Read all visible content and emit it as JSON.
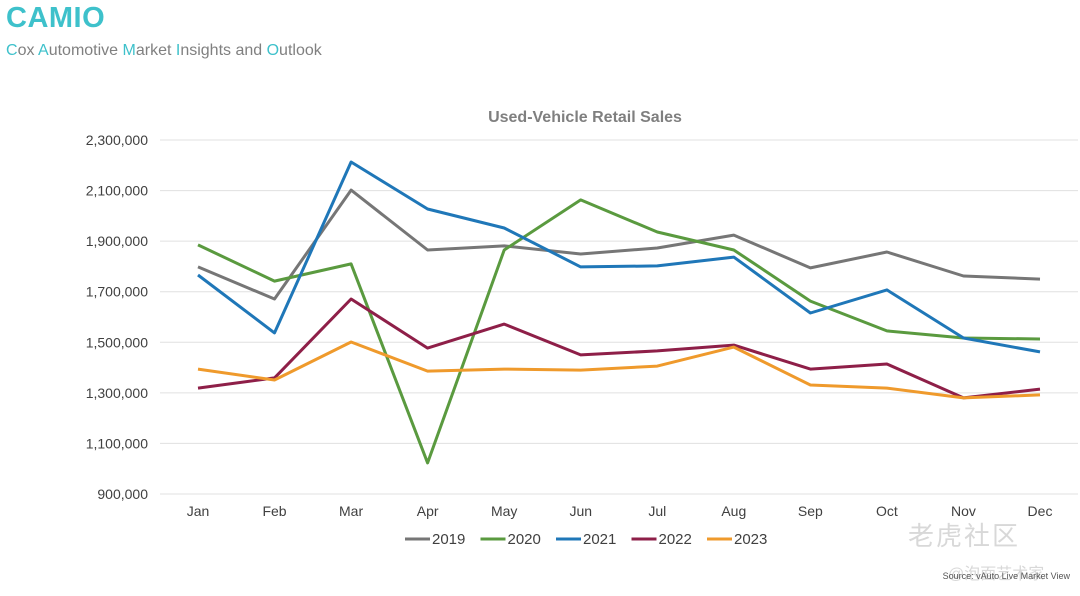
{
  "header": {
    "brand": "CAMIO",
    "tagline_parts": [
      {
        "text": "C",
        "hl": true
      },
      {
        "text": "ox ",
        "hl": false
      },
      {
        "text": "A",
        "hl": true
      },
      {
        "text": "utomotive ",
        "hl": false
      },
      {
        "text": "M",
        "hl": true
      },
      {
        "text": "arket ",
        "hl": false
      },
      {
        "text": "I",
        "hl": true
      },
      {
        "text": "nsights and ",
        "hl": false
      },
      {
        "text": "O",
        "hl": true
      },
      {
        "text": "utlook",
        "hl": false
      }
    ]
  },
  "source": "Source: vAuto Live Market View",
  "watermark": {
    "main": "老虎社区",
    "sub": "@泡面艺术家"
  },
  "colors": {
    "brand": "#3ec1cb"
  },
  "chart_data": {
    "type": "line",
    "title": "Used-Vehicle Retail Sales",
    "xlabel": "",
    "ylabel": "",
    "categories": [
      "Jan",
      "Feb",
      "Mar",
      "Apr",
      "May",
      "Jun",
      "Jul",
      "Aug",
      "Sep",
      "Oct",
      "Nov",
      "Dec"
    ],
    "ylim": [
      900000,
      2300000
    ],
    "yticks": [
      900000,
      1100000,
      1300000,
      1500000,
      1700000,
      1900000,
      2100000,
      2300000
    ],
    "ytick_labels": [
      "900,000",
      "1,100,000",
      "1,300,000",
      "1,500,000",
      "1,700,000",
      "1,900,000",
      "2,100,000",
      "2,300,000"
    ],
    "grid": true,
    "legend_position": "bottom",
    "series": [
      {
        "name": "2019",
        "color": "#767676",
        "values": [
          1798000,
          1671000,
          2102000,
          1865000,
          1881000,
          1849000,
          1873000,
          1924000,
          1794000,
          1857000,
          1762000,
          1750000
        ]
      },
      {
        "name": "2020",
        "color": "#5a9a3f",
        "values": [
          1885000,
          1742000,
          1810000,
          1023000,
          1865000,
          2063000,
          1936000,
          1865000,
          1663000,
          1545000,
          1517000,
          1513000
        ]
      },
      {
        "name": "2021",
        "color": "#1f77b8",
        "values": [
          1766000,
          1537000,
          2213000,
          2027000,
          1952000,
          1798000,
          1802000,
          1837000,
          1616000,
          1707000,
          1517000,
          1462000
        ]
      },
      {
        "name": "2022",
        "color": "#8e1f48",
        "values": [
          1319000,
          1359000,
          1671000,
          1477000,
          1572000,
          1450000,
          1466000,
          1489000,
          1394000,
          1414000,
          1280000,
          1315000
        ]
      },
      {
        "name": "2023",
        "color": "#ef9a2c",
        "values": [
          1394000,
          1351000,
          1501000,
          1386000,
          1394000,
          1390000,
          1406000,
          1481000,
          1331000,
          1319000,
          1280000,
          1292000
        ]
      }
    ]
  }
}
